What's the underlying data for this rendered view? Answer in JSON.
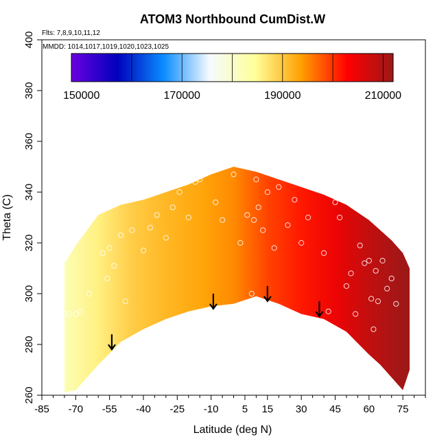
{
  "chart_data": {
    "type": "heatmap",
    "title": "ATOM3 Northbound CumDist.W",
    "xlabel": "Latitude (deg N)",
    "ylabel": "Theta (C)",
    "annotations": {
      "flights": "Flts: 7,8,9,10,11,12",
      "dates": "MMDD: 1014,1017,1019,1020,1023,1025"
    },
    "xlim": [
      -85,
      85
    ],
    "ylim": [
      260,
      400
    ],
    "x_ticks": [
      -85,
      -70,
      -55,
      -40,
      -25,
      -10,
      5,
      15,
      30,
      45,
      60,
      75
    ],
    "x_tick_labels": [
      "-85",
      "-70",
      "-55",
      "-40",
      "-25",
      "-10",
      "5",
      "15",
      "30",
      "45",
      "60",
      "75"
    ],
    "y_ticks": [
      260,
      280,
      300,
      320,
      340,
      360,
      380,
      400
    ],
    "y_tick_labels": [
      "260",
      "280",
      "300",
      "320",
      "340",
      "360",
      "380",
      "400"
    ],
    "colorbar": {
      "range": [
        148000,
        212000
      ],
      "ticks": [
        150000,
        170000,
        190000,
        210000
      ],
      "tick_labels": [
        "150000",
        "170000",
        "190000",
        "210000"
      ],
      "colors": [
        "#6a00e0",
        "#0000bb",
        "#0a8cff",
        "#f5faff",
        "#ffff99",
        "#ffa000",
        "#ff0000",
        "#9b1818"
      ]
    },
    "field_envelope": {
      "lat": [
        -75,
        -70,
        -60,
        -50,
        -40,
        -30,
        -20,
        -10,
        0,
        10,
        20,
        30,
        40,
        50,
        60,
        65,
        70,
        75,
        78
      ],
      "theta_top": [
        312,
        319,
        331,
        335,
        337,
        340,
        343,
        347,
        350,
        348,
        345,
        342,
        339,
        335,
        329,
        325,
        321,
        316,
        310
      ],
      "theta_bottom": [
        261,
        262,
        272,
        281,
        286,
        290,
        293,
        295,
        296,
        299,
        296,
        292,
        290,
        285,
        276,
        272,
        267,
        262,
        270
      ]
    },
    "field_values": {
      "lat": [
        -75,
        -60,
        -45,
        -30,
        -15,
        0,
        15,
        30,
        45,
        60,
        75
      ],
      "value": [
        182000,
        186000,
        189500,
        191500,
        193000,
        195000,
        199000,
        201500,
        204500,
        208500,
        211500
      ]
    },
    "points": {
      "lat": [
        -73,
        -70,
        -68,
        -64,
        -58,
        -56,
        -55,
        -53,
        -50,
        -48,
        -45,
        -40,
        -37,
        -34,
        -30,
        -27,
        -24,
        -20,
        -17,
        -15,
        -12,
        -8,
        -5,
        0,
        3,
        6,
        8,
        9,
        10,
        11,
        13,
        15,
        18,
        20,
        24,
        27,
        30,
        33,
        37,
        40,
        42,
        45,
        47,
        50,
        52,
        54,
        56,
        58,
        60,
        61,
        62,
        63,
        64,
        66,
        68,
        70,
        72
      ],
      "theta": [
        292,
        292,
        293,
        300,
        316,
        306,
        318,
        311,
        323,
        297,
        325,
        317,
        326,
        331,
        322,
        334,
        340,
        330,
        344,
        345,
        348,
        336,
        329,
        347,
        320,
        331,
        300,
        329,
        345,
        334,
        325,
        340,
        318,
        342,
        327,
        337,
        320,
        330,
        341,
        316,
        293,
        336,
        330,
        303,
        308,
        292,
        319,
        312,
        313,
        298,
        286,
        309,
        297,
        313,
        302,
        306,
        296
      ]
    },
    "arrows": {
      "lat": [
        -54,
        -9,
        15,
        38
      ],
      "theta_start": [
        284,
        300,
        303,
        297
      ]
    },
    "grid": false,
    "legend": "colorbar inside plot, top"
  }
}
